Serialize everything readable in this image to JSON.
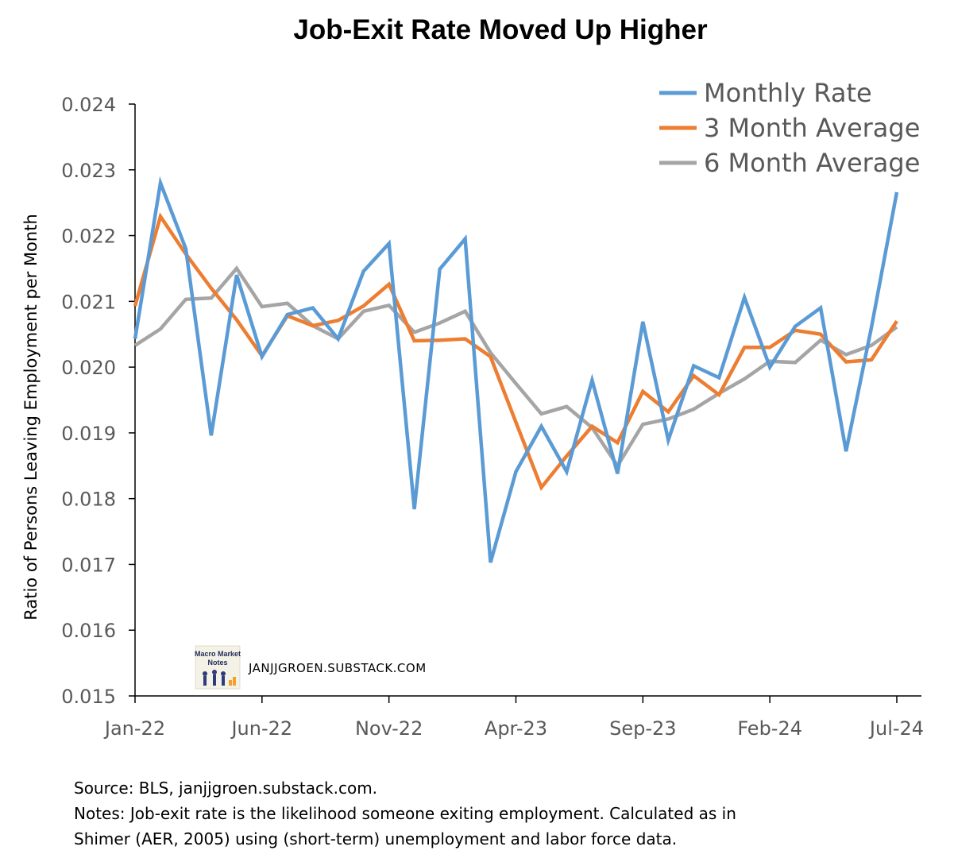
{
  "chart_data": {
    "type": "line",
    "title": "Job-Exit Rate Moved Up Higher",
    "ylabel": "Ratio of Persons Leaving Employment per Month",
    "xlabel": "",
    "ylim": [
      0.015,
      0.024
    ],
    "y_ticks": [
      "0.015",
      "0.016",
      "0.017",
      "0.018",
      "0.019",
      "0.020",
      "0.021",
      "0.022",
      "0.023",
      "0.024"
    ],
    "x_tick_labels": [
      "Jan-22",
      "Jun-22",
      "Nov-22",
      "Apr-23",
      "Sep-23",
      "Feb-24",
      "Jul-24"
    ],
    "x": [
      "Jan-22",
      "Feb-22",
      "Mar-22",
      "Apr-22",
      "May-22",
      "Jun-22",
      "Jul-22",
      "Aug-22",
      "Sep-22",
      "Oct-22",
      "Nov-22",
      "Dec-22",
      "Jan-23",
      "Feb-23",
      "Mar-23",
      "Apr-23",
      "May-23",
      "Jun-23",
      "Jul-23",
      "Aug-23",
      "Sep-23",
      "Oct-23",
      "Nov-23",
      "Dec-23",
      "Jan-24",
      "Feb-24",
      "Mar-24",
      "Apr-24",
      "May-24",
      "Jun-24",
      "Jul-24"
    ],
    "legend_position": "top-right",
    "grid": false,
    "series": [
      {
        "name": "Monthly Rate",
        "color": "#5B9BD5",
        "values": [
          0.02043,
          0.0228,
          0.0218,
          0.01896,
          0.0214,
          0.02016,
          0.0208,
          0.0209,
          0.02043,
          0.02146,
          0.02188,
          0.01784,
          0.02149,
          0.02195,
          0.01703,
          0.01841,
          0.0191,
          0.01841,
          0.0198,
          0.01838,
          0.02069,
          0.01889,
          0.02002,
          0.01984,
          0.02106,
          0.02,
          0.02062,
          0.0209,
          0.01872,
          0.0206,
          0.02266
        ]
      },
      {
        "name": "3 Month Average",
        "color": "#ED7D31",
        "values": [
          0.02093,
          0.02229,
          0.02172,
          0.0212,
          0.02072,
          0.02017,
          0.02078,
          0.02063,
          0.02071,
          0.02093,
          0.02126,
          0.0204,
          0.02041,
          0.02043,
          0.02016,
          0.01916,
          0.01817,
          0.01865,
          0.0191,
          0.01885,
          0.01963,
          0.01932,
          0.01987,
          0.01958,
          0.0203,
          0.0203,
          0.02056,
          0.0205,
          0.02008,
          0.02011,
          0.0207
        ]
      },
      {
        "name": "6 Month Average",
        "color": "#A5A5A5",
        "values": [
          0.02033,
          0.02058,
          0.02103,
          0.02105,
          0.0215,
          0.02092,
          0.02097,
          0.02063,
          0.02043,
          0.02085,
          0.02094,
          0.02053,
          0.02067,
          0.02085,
          0.02022,
          0.01975,
          0.01929,
          0.0194,
          0.01908,
          0.0185,
          0.01913,
          0.01921,
          0.01936,
          0.0196,
          0.01982,
          0.02009,
          0.02007,
          0.02041,
          0.02019,
          0.02033,
          0.02061
        ]
      }
    ]
  },
  "watermark": {
    "logo_text": "Macro Market Notes",
    "site": "JANJJGROEN.SUBSTACK.COM"
  },
  "notes": {
    "source": "Source: BLS, janjjgroen.substack.com.",
    "line1": "Notes: Job-exit rate is the likelihood someone exiting employment. Calculated as in",
    "line2": "Shimer (AER, 2005) using (short-term) unemployment and labor force data."
  }
}
